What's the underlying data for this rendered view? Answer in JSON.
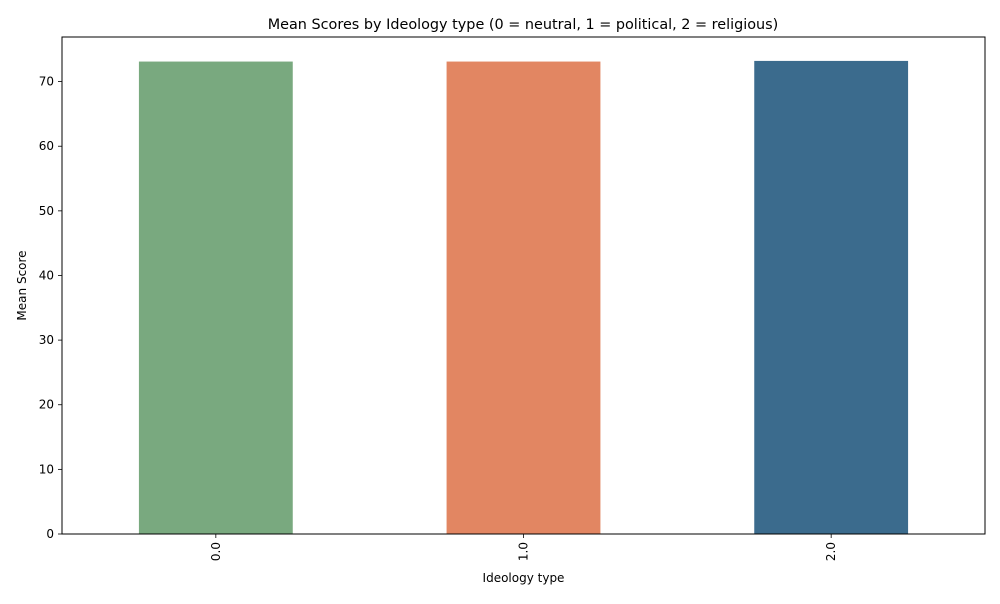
{
  "chart_data": {
    "type": "bar",
    "title": "Mean Scores by Ideology type (0 = neutral, 1 = political, 2 = religious)",
    "xlabel": "Ideology type",
    "ylabel": "Mean Score",
    "categories": [
      "0.0",
      "1.0",
      "2.0"
    ],
    "values": [
      73.1,
      73.1,
      73.2
    ],
    "colors": [
      "#79a97f",
      "#e28662",
      "#3b6b8d"
    ],
    "ylim": [
      0,
      76.9
    ],
    "yticks": [
      0,
      10,
      20,
      30,
      40,
      50,
      60,
      70
    ],
    "x_tick_rotation": "vertical",
    "grid": false,
    "legend": "none"
  }
}
